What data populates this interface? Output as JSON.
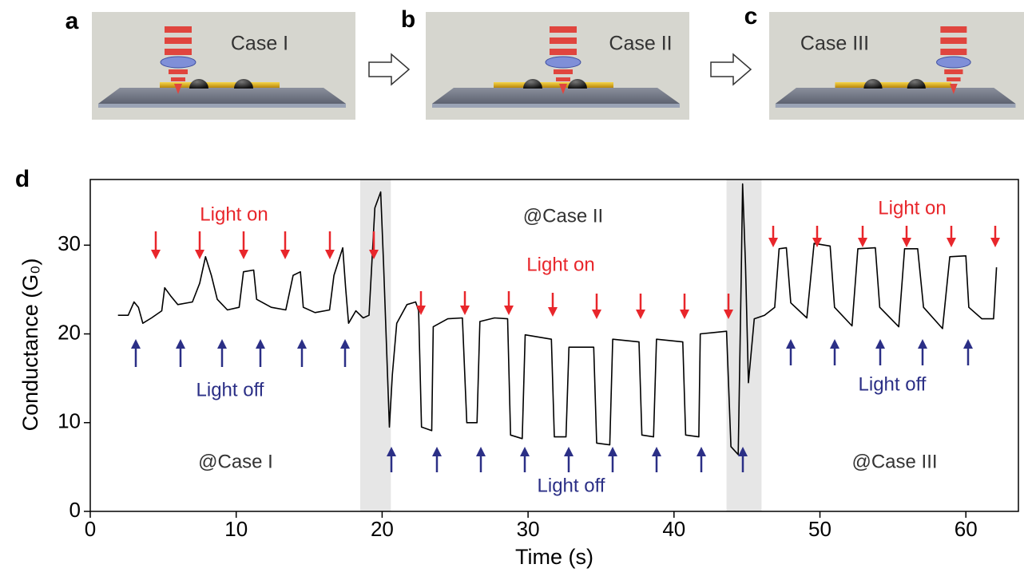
{
  "panels": [
    {
      "letter": "a",
      "caption": "Case I"
    },
    {
      "letter": "b",
      "caption": "Case II"
    },
    {
      "letter": "c",
      "caption": "Case III"
    }
  ],
  "chart_data": {
    "type": "line",
    "panel_letter": "d",
    "xlabel": "Time (s)",
    "ylabel": "Conductance (G₀)",
    "xlim": [
      0,
      63.6
    ],
    "ylim": [
      0,
      37.4
    ],
    "xticks": [
      0,
      10,
      20,
      30,
      40,
      50,
      60
    ],
    "yticks": [
      0,
      10,
      20,
      30
    ],
    "shaded": [
      [
        18.5,
        20.6
      ],
      [
        43.6,
        46.0
      ]
    ],
    "shade_color": "#e6e6e6",
    "x": [
      1.9,
      2.6,
      3.0,
      3.3,
      3.6,
      4.2,
      4.9,
      5.1,
      5.5,
      6.0,
      7.0,
      7.5,
      7.9,
      8.3,
      8.7,
      9.4,
      10.2,
      10.5,
      11.2,
      11.4,
      12.4,
      13.4,
      13.9,
      14.4,
      14.6,
      15.4,
      16.4,
      16.7,
      17.3,
      17.5,
      17.7,
      18.2,
      18.7,
      19.1,
      19.5,
      19.9,
      20.1,
      20.5,
      20.7,
      21.0,
      21.7,
      22.3,
      22.5,
      22.7,
      23.4,
      23.5,
      24.5,
      25.5,
      25.8,
      26.5,
      26.7,
      27.7,
      28.6,
      28.8,
      29.6,
      29.8,
      31.6,
      31.8,
      32.6,
      32.8,
      34.5,
      34.7,
      35.6,
      35.8,
      37.6,
      37.8,
      38.6,
      38.8,
      40.6,
      40.8,
      41.7,
      41.8,
      43.6,
      43.9,
      44.4,
      44.6,
      44.7,
      44.9,
      45.1,
      45.5,
      46.2,
      46.9,
      47.2,
      47.7,
      48.0,
      49.1,
      49.6,
      50.7,
      51.0,
      52.2,
      52.6,
      53.8,
      54.1,
      55.4,
      55.8,
      56.7,
      57.1,
      58.4,
      58.9,
      60.0,
      60.2,
      61.1,
      61.9,
      62.1
    ],
    "series": [
      {
        "color": "#000000",
        "values": [
          22.1,
          22.1,
          23.6,
          23.0,
          21.2,
          21.8,
          22.6,
          25.2,
          24.3,
          23.3,
          23.6,
          25.7,
          28.7,
          26.6,
          23.9,
          22.7,
          23.0,
          27.0,
          27.2,
          23.9,
          23.0,
          22.7,
          26.6,
          27.0,
          23.0,
          22.4,
          22.7,
          26.6,
          29.7,
          25.2,
          21.2,
          22.6,
          21.8,
          22.1,
          34.2,
          36.0,
          27.9,
          9.5,
          15.4,
          21.2,
          23.3,
          23.6,
          22.6,
          9.5,
          9.1,
          20.8,
          21.7,
          21.8,
          10.0,
          10.0,
          21.4,
          21.8,
          21.7,
          8.6,
          8.2,
          19.9,
          19.4,
          8.4,
          8.4,
          18.5,
          18.5,
          7.7,
          7.5,
          19.4,
          19.1,
          8.6,
          8.4,
          19.4,
          19.1,
          8.6,
          8.4,
          20.0,
          20.3,
          7.3,
          6.4,
          26.1,
          36.9,
          27.9,
          14.5,
          21.7,
          22.1,
          23.0,
          29.6,
          29.7,
          23.5,
          21.8,
          30.2,
          29.9,
          23.0,
          20.9,
          29.6,
          29.7,
          23.0,
          20.8,
          29.6,
          29.6,
          23.0,
          20.6,
          28.7,
          28.8,
          23.0,
          21.7,
          21.7,
          27.5
        ]
      }
    ],
    "annotations": [
      {
        "text": "Light on",
        "color": "#e8262b"
      },
      {
        "text": "Light on",
        "color": "#e8262b"
      },
      {
        "text": "Light on",
        "color": "#e8262b"
      },
      {
        "text": "Light off",
        "color": "#2b2f86"
      },
      {
        "text": "Light off",
        "color": "#2b2f86"
      },
      {
        "text": "Light off",
        "color": "#2b2f86"
      },
      {
        "text": "@Case I",
        "color": "#333333"
      },
      {
        "text": "@Case II",
        "color": "#333333"
      },
      {
        "text": "@Case III",
        "color": "#333333"
      }
    ]
  }
}
